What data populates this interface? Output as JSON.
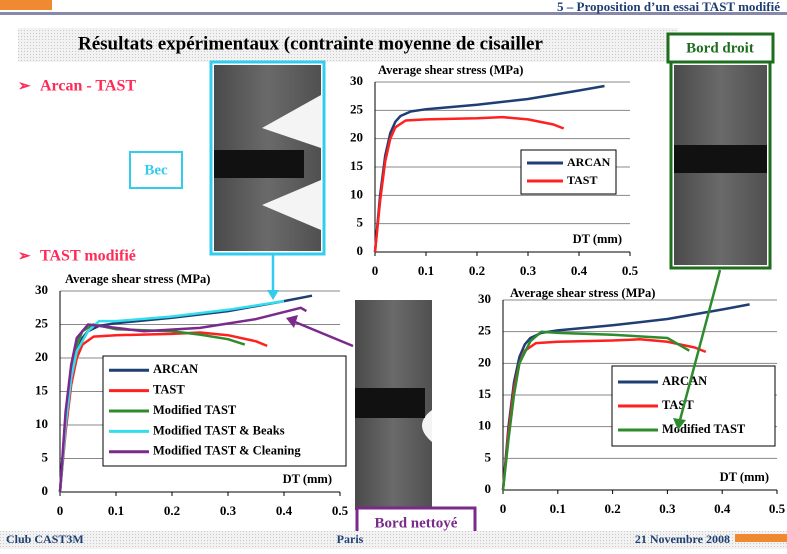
{
  "header": {
    "section": "5 – Proposition d’un essai TAST modifié",
    "title": "Résultats expérimentaux (contrainte moyenne de cisailler"
  },
  "bullets": [
    "Arcan - TAST",
    "TAST modifié"
  ],
  "callouts": {
    "bec": "Bec",
    "bord_droit": "Bord droit",
    "bord_nettoye": "Bord nettoyé"
  },
  "footer": {
    "left": "Club CAST3M",
    "center": "Paris",
    "right": "21 Novembre 2008"
  },
  "chart_data": [
    {
      "type": "line",
      "y_label": "Average shear stress (MPa)",
      "x_label": "DT (mm)",
      "xlim": [
        0,
        0.5
      ],
      "ylim": [
        0,
        30
      ],
      "xticks": [
        0,
        0.1,
        0.2,
        0.3,
        0.4,
        0.5
      ],
      "yticks": [
        0,
        5,
        10,
        15,
        20,
        25,
        30
      ],
      "grid": true,
      "series": [
        {
          "name": "ARCAN",
          "color": "#1f3f73",
          "x": [
            0,
            0.01,
            0.02,
            0.03,
            0.04,
            0.05,
            0.07,
            0.1,
            0.2,
            0.3,
            0.4,
            0.45
          ],
          "values": [
            0,
            10,
            17,
            21,
            23,
            24,
            24.8,
            25.2,
            26,
            27,
            28.5,
            29.3
          ]
        },
        {
          "name": "TAST",
          "color": "#ff2020",
          "x": [
            0,
            0.01,
            0.02,
            0.03,
            0.04,
            0.06,
            0.1,
            0.2,
            0.25,
            0.3,
            0.35,
            0.37
          ],
          "values": [
            0,
            9,
            16,
            20,
            22,
            23.2,
            23.4,
            23.6,
            23.8,
            23.4,
            22.5,
            21.8
          ]
        }
      ]
    },
    {
      "type": "line",
      "y_label": "Average shear stress (MPa)",
      "x_label": "DT (mm)",
      "xlim": [
        0,
        0.5
      ],
      "ylim": [
        0,
        30
      ],
      "xticks": [
        0,
        0.1,
        0.2,
        0.3,
        0.4,
        0.5
      ],
      "yticks": [
        0,
        5,
        10,
        15,
        20,
        25,
        30
      ],
      "grid": true,
      "series": [
        {
          "name": "ARCAN",
          "color": "#1f3f73",
          "x": [
            0,
            0.01,
            0.02,
            0.03,
            0.04,
            0.05,
            0.07,
            0.1,
            0.2,
            0.3,
            0.4,
            0.45
          ],
          "values": [
            0,
            10,
            17,
            21,
            23,
            24,
            24.8,
            25.2,
            26,
            27,
            28.5,
            29.3
          ]
        },
        {
          "name": "TAST",
          "color": "#ff2020",
          "x": [
            0,
            0.01,
            0.02,
            0.03,
            0.04,
            0.06,
            0.1,
            0.2,
            0.25,
            0.3,
            0.35,
            0.37
          ],
          "values": [
            0,
            9,
            16,
            20,
            22,
            23.2,
            23.4,
            23.6,
            23.8,
            23.4,
            22.5,
            21.8
          ]
        },
        {
          "name": "Modified TAST",
          "color": "#2e8b2e",
          "x": [
            0,
            0.01,
            0.02,
            0.03,
            0.04,
            0.06,
            0.1,
            0.2,
            0.25,
            0.3,
            0.33
          ],
          "values": [
            0,
            11,
            18,
            22,
            24,
            25,
            24.3,
            24,
            23.5,
            22.8,
            22
          ]
        },
        {
          "name": "Modified TAST & Beaks",
          "color": "#33ddee",
          "x": [
            0,
            0.01,
            0.02,
            0.03,
            0.05,
            0.07,
            0.1,
            0.2,
            0.3,
            0.4
          ],
          "values": [
            0,
            10,
            17,
            21,
            24,
            25.5,
            25.5,
            26.2,
            27.2,
            28.5
          ]
        },
        {
          "name": "Modified TAST & Cleaning",
          "color": "#7a2a8a",
          "x": [
            0,
            0.01,
            0.02,
            0.03,
            0.05,
            0.1,
            0.15,
            0.25,
            0.35,
            0.43,
            0.44
          ],
          "values": [
            0,
            12,
            19,
            23,
            25,
            24.5,
            24,
            24.5,
            25.8,
            27.5,
            27
          ]
        }
      ]
    },
    {
      "type": "line",
      "y_label": "Average shear stress (MPa)",
      "x_label": "DT (mm)",
      "xlim": [
        0,
        0.5
      ],
      "ylim": [
        0,
        30
      ],
      "xticks": [
        0,
        0.1,
        0.2,
        0.3,
        0.4,
        0.5
      ],
      "yticks": [
        0,
        5,
        10,
        15,
        20,
        25,
        30
      ],
      "grid": true,
      "series": [
        {
          "name": "ARCAN",
          "color": "#1f3f73",
          "x": [
            0,
            0.01,
            0.02,
            0.03,
            0.04,
            0.05,
            0.07,
            0.1,
            0.2,
            0.3,
            0.4,
            0.45
          ],
          "values": [
            0,
            10,
            17,
            21,
            23,
            24,
            24.8,
            25.2,
            26,
            27,
            28.5,
            29.3
          ]
        },
        {
          "name": "TAST",
          "color": "#ff2020",
          "x": [
            0,
            0.01,
            0.02,
            0.03,
            0.04,
            0.06,
            0.1,
            0.2,
            0.25,
            0.3,
            0.35,
            0.37
          ],
          "values": [
            0,
            9,
            16,
            20,
            22,
            23.2,
            23.4,
            23.6,
            23.8,
            23.4,
            22.5,
            21.8
          ]
        },
        {
          "name": "Modified TAST",
          "color": "#2e8b2e",
          "x": [
            0,
            0.01,
            0.02,
            0.03,
            0.05,
            0.07,
            0.1,
            0.2,
            0.3,
            0.34
          ],
          "values": [
            0,
            8,
            15,
            20,
            23.5,
            25,
            24.8,
            24.5,
            24,
            22
          ]
        }
      ]
    }
  ]
}
